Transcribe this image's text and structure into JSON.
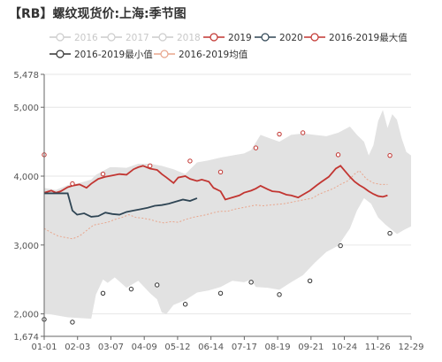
{
  "chart_data": {
    "type": "line",
    "title": "【RB】螺纹现货价:上海:季节图",
    "x_ticks": [
      "01-01",
      "02-03",
      "03-07",
      "04-09",
      "05-12",
      "06-14",
      "07-17",
      "08-19",
      "09-21",
      "10-24",
      "11-26",
      "12-29"
    ],
    "y_ticks": [
      1674,
      2000,
      3000,
      4000,
      5000,
      5478
    ],
    "y_tick_labels": [
      "1,674",
      "2,000",
      "3,000",
      "4,000",
      "5,000",
      "5,478"
    ],
    "ylim": [
      1674,
      5478
    ],
    "legend": [
      {
        "name": "2016",
        "color": "#cccccc",
        "enabled": false
      },
      {
        "name": "2017",
        "color": "#cccccc",
        "enabled": false
      },
      {
        "name": "2018",
        "color": "#cccccc",
        "enabled": false
      },
      {
        "name": "2019",
        "color": "#c23531",
        "enabled": true
      },
      {
        "name": "2020",
        "color": "#2f4554",
        "enabled": true
      },
      {
        "name": "2016-2019最大值",
        "color": "#c23531",
        "enabled": true
      },
      {
        "name": "2016-2019最小值",
        "color": "#333333",
        "enabled": true
      },
      {
        "name": "2016-2019均值",
        "color": "#e8a58c",
        "enabled": true
      }
    ],
    "colors": {
      "band": "#e2e2e2",
      "s2019": "#c23531",
      "s2020": "#2f4554",
      "max": "#c23531",
      "min": "#333333",
      "mean": "#e8a58c",
      "axis": "#666666",
      "grid": "#e6e6e6"
    },
    "band_upper": [
      [
        0,
        3830
      ],
      [
        5,
        3800
      ],
      [
        10,
        3870
      ],
      [
        15,
        3900
      ],
      [
        20,
        3950
      ],
      [
        22,
        4020
      ],
      [
        28,
        4130
      ],
      [
        30,
        4130
      ],
      [
        35,
        4120
      ],
      [
        40,
        4180
      ],
      [
        45,
        4180
      ],
      [
        50,
        4150
      ],
      [
        55,
        4100
      ],
      [
        60,
        4030
      ],
      [
        65,
        4200
      ],
      [
        70,
        4230
      ],
      [
        75,
        4270
      ],
      [
        80,
        4300
      ],
      [
        85,
        4330
      ],
      [
        88,
        4380
      ],
      [
        92,
        4600
      ],
      [
        95,
        4560
      ],
      [
        100,
        4500
      ],
      [
        105,
        4600
      ],
      [
        110,
        4620
      ],
      [
        115,
        4600
      ],
      [
        120,
        4580
      ],
      [
        125,
        4630
      ],
      [
        130,
        4720
      ],
      [
        133,
        4600
      ],
      [
        136,
        4500
      ],
      [
        138,
        4300
      ],
      [
        140,
        4450
      ],
      [
        142,
        4800
      ],
      [
        144,
        4960
      ],
      [
        146,
        4700
      ],
      [
        148,
        4900
      ],
      [
        150,
        4820
      ],
      [
        152,
        4550
      ],
      [
        154,
        4350
      ],
      [
        156,
        4300
      ]
    ],
    "band_lower": [
      [
        0,
        2010
      ],
      [
        10,
        1950
      ],
      [
        20,
        1930
      ],
      [
        22,
        2280
      ],
      [
        25,
        2500
      ],
      [
        27,
        2450
      ],
      [
        30,
        2530
      ],
      [
        35,
        2380
      ],
      [
        40,
        2480
      ],
      [
        45,
        2300
      ],
      [
        48,
        2210
      ],
      [
        50,
        2020
      ],
      [
        52,
        2000
      ],
      [
        55,
        2130
      ],
      [
        60,
        2200
      ],
      [
        65,
        2310
      ],
      [
        70,
        2340
      ],
      [
        75,
        2390
      ],
      [
        80,
        2480
      ],
      [
        85,
        2460
      ],
      [
        88,
        2500
      ],
      [
        90,
        2390
      ],
      [
        95,
        2380
      ],
      [
        100,
        2350
      ],
      [
        105,
        2460
      ],
      [
        110,
        2560
      ],
      [
        115,
        2740
      ],
      [
        120,
        2900
      ],
      [
        125,
        2990
      ],
      [
        130,
        3240
      ],
      [
        133,
        3500
      ],
      [
        136,
        3680
      ],
      [
        139,
        3600
      ],
      [
        142,
        3400
      ],
      [
        145,
        3300
      ],
      [
        150,
        3160
      ],
      [
        153,
        3220
      ],
      [
        156,
        3270
      ]
    ],
    "series_2019": [
      [
        0,
        3760
      ],
      [
        3,
        3790
      ],
      [
        5,
        3760
      ],
      [
        7,
        3780
      ],
      [
        10,
        3840
      ],
      [
        12,
        3860
      ],
      [
        15,
        3880
      ],
      [
        18,
        3830
      ],
      [
        20,
        3890
      ],
      [
        23,
        3960
      ],
      [
        26,
        3990
      ],
      [
        29,
        4010
      ],
      [
        32,
        4030
      ],
      [
        35,
        4020
      ],
      [
        38,
        4100
      ],
      [
        40,
        4130
      ],
      [
        42,
        4150
      ],
      [
        45,
        4110
      ],
      [
        48,
        4090
      ],
      [
        50,
        4030
      ],
      [
        52,
        3980
      ],
      [
        55,
        3900
      ],
      [
        57,
        3980
      ],
      [
        60,
        4000
      ],
      [
        62,
        3960
      ],
      [
        65,
        3930
      ],
      [
        67,
        3950
      ],
      [
        70,
        3920
      ],
      [
        72,
        3830
      ],
      [
        75,
        3780
      ],
      [
        77,
        3660
      ],
      [
        80,
        3690
      ],
      [
        83,
        3720
      ],
      [
        85,
        3760
      ],
      [
        88,
        3790
      ],
      [
        90,
        3820
      ],
      [
        92,
        3860
      ],
      [
        95,
        3810
      ],
      [
        97,
        3780
      ],
      [
        100,
        3770
      ],
      [
        103,
        3730
      ],
      [
        105,
        3720
      ],
      [
        108,
        3690
      ],
      [
        110,
        3730
      ],
      [
        113,
        3790
      ],
      [
        116,
        3870
      ],
      [
        118,
        3920
      ],
      [
        121,
        3990
      ],
      [
        124,
        4110
      ],
      [
        126,
        4150
      ],
      [
        128,
        4070
      ],
      [
        130,
        3990
      ],
      [
        132,
        3920
      ],
      [
        134,
        3870
      ],
      [
        136,
        3830
      ],
      [
        138,
        3780
      ],
      [
        140,
        3740
      ],
      [
        142,
        3710
      ],
      [
        144,
        3700
      ],
      [
        146,
        3720
      ]
    ],
    "series_2020": [
      [
        0,
        3750
      ],
      [
        5,
        3750
      ],
      [
        10,
        3750
      ],
      [
        12,
        3500
      ],
      [
        14,
        3440
      ],
      [
        17,
        3460
      ],
      [
        20,
        3410
      ],
      [
        23,
        3420
      ],
      [
        26,
        3470
      ],
      [
        29,
        3450
      ],
      [
        32,
        3440
      ],
      [
        35,
        3480
      ],
      [
        38,
        3500
      ],
      [
        41,
        3520
      ],
      [
        44,
        3540
      ],
      [
        47,
        3570
      ],
      [
        50,
        3580
      ],
      [
        53,
        3600
      ],
      [
        56,
        3630
      ],
      [
        59,
        3660
      ],
      [
        62,
        3640
      ],
      [
        65,
        3680
      ]
    ],
    "series_mean": [
      [
        0,
        3240
      ],
      [
        3,
        3180
      ],
      [
        6,
        3130
      ],
      [
        9,
        3110
      ],
      [
        12,
        3090
      ],
      [
        15,
        3130
      ],
      [
        18,
        3210
      ],
      [
        21,
        3290
      ],
      [
        24,
        3310
      ],
      [
        27,
        3330
      ],
      [
        30,
        3370
      ],
      [
        33,
        3400
      ],
      [
        36,
        3440
      ],
      [
        39,
        3400
      ],
      [
        42,
        3390
      ],
      [
        45,
        3370
      ],
      [
        48,
        3340
      ],
      [
        51,
        3320
      ],
      [
        54,
        3340
      ],
      [
        57,
        3330
      ],
      [
        60,
        3370
      ],
      [
        63,
        3400
      ],
      [
        66,
        3420
      ],
      [
        69,
        3440
      ],
      [
        72,
        3470
      ],
      [
        75,
        3490
      ],
      [
        78,
        3490
      ],
      [
        81,
        3520
      ],
      [
        84,
        3540
      ],
      [
        87,
        3560
      ],
      [
        90,
        3580
      ],
      [
        93,
        3570
      ],
      [
        96,
        3580
      ],
      [
        99,
        3590
      ],
      [
        102,
        3600
      ],
      [
        105,
        3620
      ],
      [
        108,
        3640
      ],
      [
        111,
        3660
      ],
      [
        114,
        3680
      ],
      [
        117,
        3740
      ],
      [
        120,
        3780
      ],
      [
        123,
        3820
      ],
      [
        126,
        3880
      ],
      [
        129,
        3930
      ],
      [
        132,
        4030
      ],
      [
        134,
        4080
      ],
      [
        137,
        3960
      ],
      [
        140,
        3900
      ],
      [
        143,
        3880
      ],
      [
        146,
        3880
      ]
    ],
    "max_markers": [
      [
        0,
        4310
      ],
      [
        12,
        3890
      ],
      [
        25,
        4030
      ],
      [
        45,
        4150
      ],
      [
        62,
        4220
      ],
      [
        75,
        4060
      ],
      [
        90,
        4410
      ],
      [
        100,
        4610
      ],
      [
        110,
        4630
      ],
      [
        125,
        4310
      ],
      [
        147,
        4300
      ]
    ],
    "min_markers": [
      [
        0,
        1920
      ],
      [
        12,
        1880
      ],
      [
        25,
        2300
      ],
      [
        37,
        2360
      ],
      [
        48,
        2420
      ],
      [
        60,
        2140
      ],
      [
        75,
        2300
      ],
      [
        88,
        2460
      ],
      [
        100,
        2280
      ],
      [
        113,
        2480
      ],
      [
        126,
        2990
      ],
      [
        147,
        3170
      ]
    ]
  }
}
